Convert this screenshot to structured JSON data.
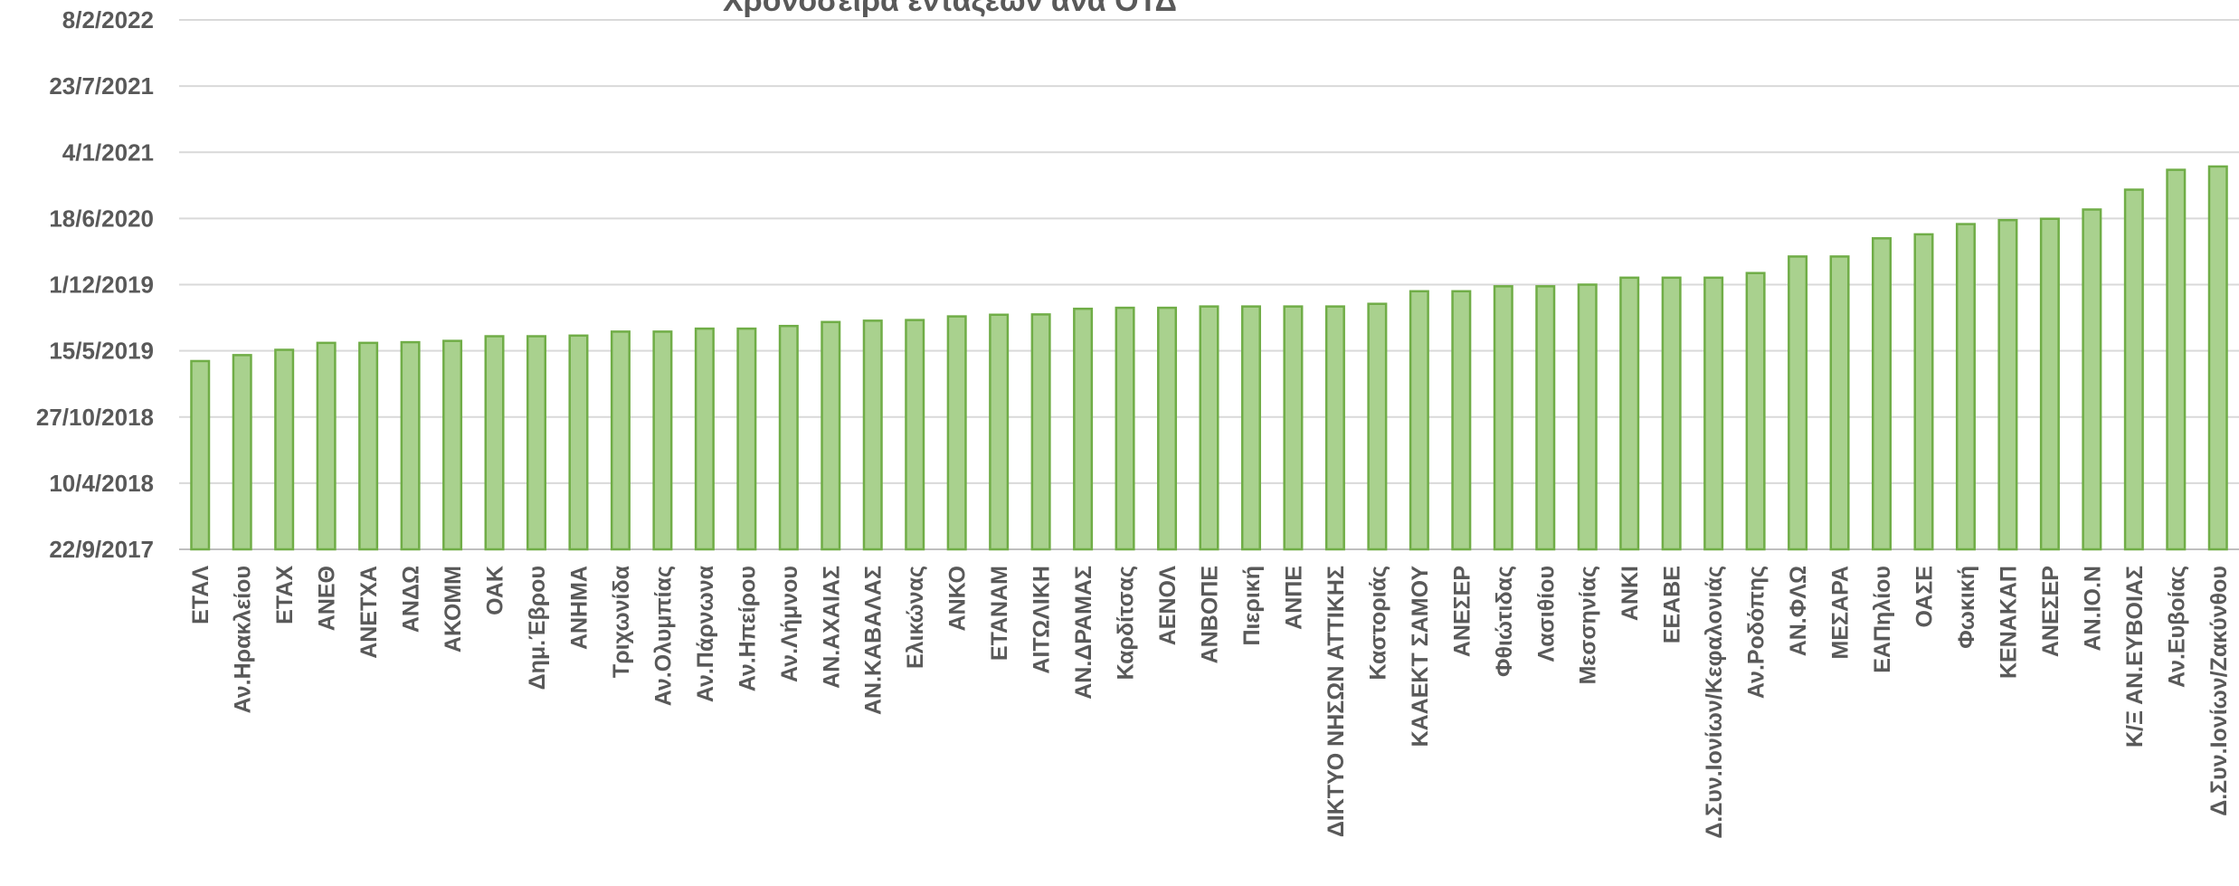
{
  "chart_data": {
    "type": "bar",
    "title": "Χρονοσειρά εντάξεων ανά ΟΤΔ",
    "xlabel": "",
    "ylabel": "",
    "ylim": [
      "2017-09-22",
      "2022-02-08"
    ],
    "y_ticks": [
      "22/9/2017",
      "10/4/2018",
      "27/10/2018",
      "15/5/2019",
      "1/12/2019",
      "18/6/2020",
      "4/1/2021",
      "23/7/2021",
      "8/2/2022"
    ],
    "y_tick_values": [
      "2017-09-22",
      "2018-04-10",
      "2018-10-27",
      "2019-05-15",
      "2019-12-01",
      "2020-06-18",
      "2021-01-04",
      "2021-07-23",
      "2022-02-08"
    ],
    "grid": true,
    "legend": "none",
    "bar_color": "#a9d18e",
    "bar_border_color": "#70ad47",
    "categories": [
      "ΕΤΑΛ",
      "Αν.Ηρακλείου",
      "ΕΤΑΧ",
      "ΑΝΕΘ",
      "ΑΝΕΤΧΑ",
      "ΑΝΔΩ",
      "ΑΚΟΜΜ",
      "ΟΑΚ",
      "Δημ.Έβρου",
      "ΑΝΗΜΑ",
      "Τριχωνίδα",
      "Αν.Ολυμπίας",
      "Αν.Πάρνωνα",
      "Αν.Ηπείρου",
      "Αν.Λήμνου",
      "ΑΝ.ΑΧΑΙΑΣ",
      "ΑΝ.ΚΑΒΑΛΑΣ",
      "Ελικώνας",
      "ΑΝΚΟ",
      "ΕΤΑΝΑΜ",
      "ΑΙΤΩΛΙΚΗ",
      "ΑΝ.ΔΡΑΜΑΣ",
      "Καρδίτσας",
      "ΑΕΝΟΛ",
      "ΑΝΒΟΠΕ",
      "Πιερική",
      "ΑΝΠΕ",
      "ΔΙΚΤΥΟ ΝΗΣΩΝ ΑΤΤΙΚΗΣ",
      "Καστοριάς",
      "ΚΑΑΕΚΤ ΣΑΜΟΥ",
      "ΑΝΕΣΕΡ",
      "Φθιώτιδας",
      "Λασιθίου",
      "Μεσσηνίας",
      "ΑΝΚΙ",
      "ΕΕΑΒΕ",
      "Δ.Συν.Ιονίων/Κεφαλονιάς",
      "Αν.Ροδόπης",
      "ΑΝ.ΦΛΩ",
      "ΜΕΣΑΡΑ",
      "ΕΑΠηλίου",
      "ΟΑΣΕ",
      "Φωκική",
      "ΚΕΝΑΚΑΠ",
      "ΑΝΕΣΕΡ",
      "ΑΝ.ΙΟ.Ν",
      "Κ/Ξ ΑΝ.ΕΥΒΟΙΑΣ",
      "Αν.Ευβοίας",
      "Δ.Συν.Ιονίων/Ζακύνθου"
    ],
    "values": [
      "2019-04-14",
      "2019-05-02",
      "2019-05-18",
      "2019-06-08",
      "2019-06-08",
      "2019-06-10",
      "2019-06-14",
      "2019-06-28",
      "2019-06-28",
      "2019-06-30",
      "2019-07-12",
      "2019-07-12",
      "2019-07-21",
      "2019-07-21",
      "2019-07-29",
      "2019-08-10",
      "2019-08-14",
      "2019-08-16",
      "2019-08-27",
      "2019-09-01",
      "2019-09-02",
      "2019-09-19",
      "2019-09-22",
      "2019-09-22",
      "2019-09-26",
      "2019-09-26",
      "2019-09-26",
      "2019-09-26",
      "2019-10-04",
      "2019-11-11",
      "2019-11-11",
      "2019-11-26",
      "2019-11-26",
      "2019-12-01",
      "2019-12-22",
      "2019-12-22",
      "2019-12-22",
      "2020-01-05",
      "2020-02-24",
      "2020-02-24",
      "2020-04-19",
      "2020-05-01",
      "2020-06-01",
      "2020-06-13",
      "2020-06-17",
      "2020-07-15",
      "2020-09-13",
      "2020-11-12",
      "2020-11-22"
    ]
  }
}
